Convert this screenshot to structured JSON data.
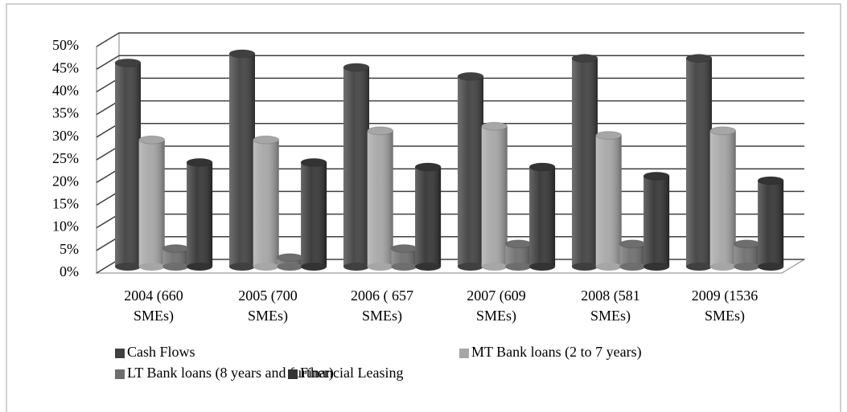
{
  "chart_data": {
    "type": "bar3d",
    "categories": [
      "2004 (660 SMEs)",
      "2005 (700 SMEs)",
      "2006 ( 657 SMEs)",
      "2007 (609 SMEs)",
      "2008 (581 SMEs)",
      "2009 (1536 SMEs)"
    ],
    "series": [
      {
        "name": "Cash Flows",
        "color": "#404040",
        "values": [
          45,
          47,
          44,
          42,
          46,
          46
        ]
      },
      {
        "name": "MT Bank loans (2 to 7 years)",
        "color": "#a6a6a6",
        "values": [
          28,
          28,
          30,
          31,
          29,
          30
        ]
      },
      {
        "name": "LT Bank loans (8 years and further)",
        "color": "#6e6e6e",
        "values": [
          4,
          2,
          4,
          5,
          5,
          5
        ]
      },
      {
        "name": "Financial Leasing",
        "color": "#333333",
        "values": [
          23,
          23,
          22,
          22,
          20,
          19
        ]
      }
    ],
    "ylim": [
      0,
      50
    ],
    "yticks": [
      {
        "value": 0,
        "label": "0%"
      },
      {
        "value": 5,
        "label": "5%"
      },
      {
        "value": 10,
        "label": "10%"
      },
      {
        "value": 15,
        "label": "15%"
      },
      {
        "value": 20,
        "label": "20%"
      },
      {
        "value": 25,
        "label": "25%"
      },
      {
        "value": 30,
        "label": "30%"
      },
      {
        "value": 35,
        "label": "35%"
      },
      {
        "value": 40,
        "label": "40%"
      },
      {
        "value": 45,
        "label": "45%"
      },
      {
        "value": 50,
        "label": "50%"
      }
    ],
    "grid": true
  }
}
